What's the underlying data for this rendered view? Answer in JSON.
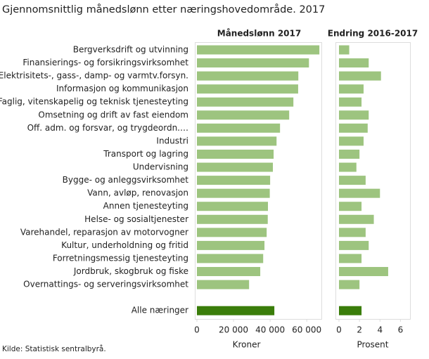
{
  "title": "Gjennomsnittlig månedslønn etter næringshovedområde. 2017",
  "source": "Kilde: Statistisk sentralbyrå.",
  "chart_data": [
    {
      "type": "bar",
      "orientation": "horizontal",
      "subtitle": "Månedslønn 2017",
      "xlabel": "Kroner",
      "categories": [
        "Bergverksdrift og utvinning",
        "Finansierings- og forsikringsvirksomhet",
        "Elektrisitets-, gass-, damp- og varmtv.forsyn.",
        "Informasjon og kommunikasjon",
        "Faglig, vitenskapelig og teknisk tjenesteyting",
        "Omsetning og drift av fast eiendom",
        "Off. adm. og forsvar, og trygdeordn.…",
        "Industri",
        "Transport og lagring",
        "Undervisning",
        "Bygge- og anleggsvirksomhet",
        "Vann, avløp, renovasjon",
        "Annen tjenesteyting",
        "Helse- og sosialtjenester",
        "Varehandel, reparasjon av motorvogner",
        "Kultur, underholdning og fritid",
        "Forretningsmessig tjenesteyting",
        "Jordbruk, skogbruk og fiske",
        "Overnattings- og serveringsvirksomhet",
        "Alle næringer"
      ],
      "values": [
        66900,
        61200,
        55400,
        55300,
        52700,
        50400,
        45400,
        43500,
        41900,
        41500,
        40000,
        39800,
        38800,
        38700,
        38100,
        36900,
        36200,
        34600,
        28500,
        42300
      ],
      "color": "#9dc47f",
      "total_color": "#3a7d0a",
      "xlim": [
        0,
        68000
      ],
      "xticks": [
        0,
        {
          "value": 20000,
          "label": "20 000"
        },
        {
          "value": 40000,
          "label": "40 000"
        },
        {
          "value": 60000,
          "label": "60 000"
        }
      ]
    },
    {
      "type": "bar",
      "orientation": "horizontal",
      "subtitle": "Endring 2016-2017",
      "xlabel": "Prosent",
      "values": [
        1.0,
        2.9,
        4.1,
        2.4,
        2.2,
        2.9,
        2.8,
        2.4,
        2.0,
        1.7,
        2.6,
        4.0,
        2.2,
        3.4,
        2.6,
        2.9,
        2.2,
        4.8,
        2.0,
        2.2
      ],
      "color": "#9dc47f",
      "total_color": "#3a7d0a",
      "xlim": [
        0,
        7
      ],
      "xticks": [
        0,
        2,
        4,
        6
      ]
    }
  ]
}
